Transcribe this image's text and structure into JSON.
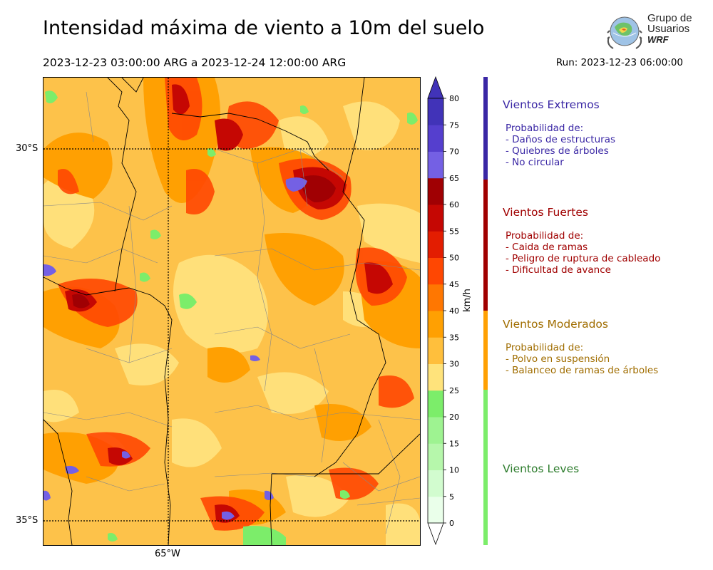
{
  "title": "Intensidad máxima de viento a 10m del suelo",
  "period": "2023-12-23 03:00:00 ARG  a  2023-12-24 12:00:00 ARG",
  "run": "Run: 2023-12-23 06:00:00",
  "logo": {
    "line1": "Grupo de",
    "line2": "Usuarios",
    "line3": "WRF"
  },
  "map": {
    "lat_labels": [
      "30°S",
      "35°S"
    ],
    "lon_labels": [
      "65°W"
    ]
  },
  "colorbar": {
    "units": "km/h",
    "ticks": [
      "0",
      "5",
      "10",
      "15",
      "20",
      "25",
      "30",
      "35",
      "40",
      "45",
      "50",
      "55",
      "60",
      "65",
      "70",
      "75",
      "80"
    ],
    "colors": [
      "#eaffea",
      "#d2fccf",
      "#b6f7ab",
      "#9ef391",
      "#7ced6a",
      "#ffe37b",
      "#ffbf3c",
      "#ffa002",
      "#ff7701",
      "#ff4702",
      "#e31d01",
      "#c50703",
      "#a00003",
      "#7460e4",
      "#553fce",
      "#4133b8"
    ]
  },
  "categories": [
    {
      "title": "Vientos Extremos",
      "color": "#3a27a5",
      "bar_color": "#3a27a5",
      "lines": [
        "Probabilidad de:",
        "- Daños de estructuras",
        "- Quiebres de árboles",
        "- No circular"
      ]
    },
    {
      "title": "Vientos Fuertes",
      "color": "#a00000",
      "bar_color": "#a00000",
      "lines": [
        "Probabilidad de:",
        "- Caida de ramas",
        "- Peligro de ruptura de cableado",
        "- Dificultad de avance"
      ]
    },
    {
      "title": "Vientos Moderados",
      "color": "#a06d00",
      "bar_color": "#ffa002",
      "lines": [
        "Probabilidad de:",
        "- Polvo en suspensión",
        "- Balanceo de ramas de árboles"
      ]
    },
    {
      "title": "Vientos Leves",
      "color": "#2e7d2e",
      "bar_color": "#7ced6a",
      "lines": []
    }
  ]
}
